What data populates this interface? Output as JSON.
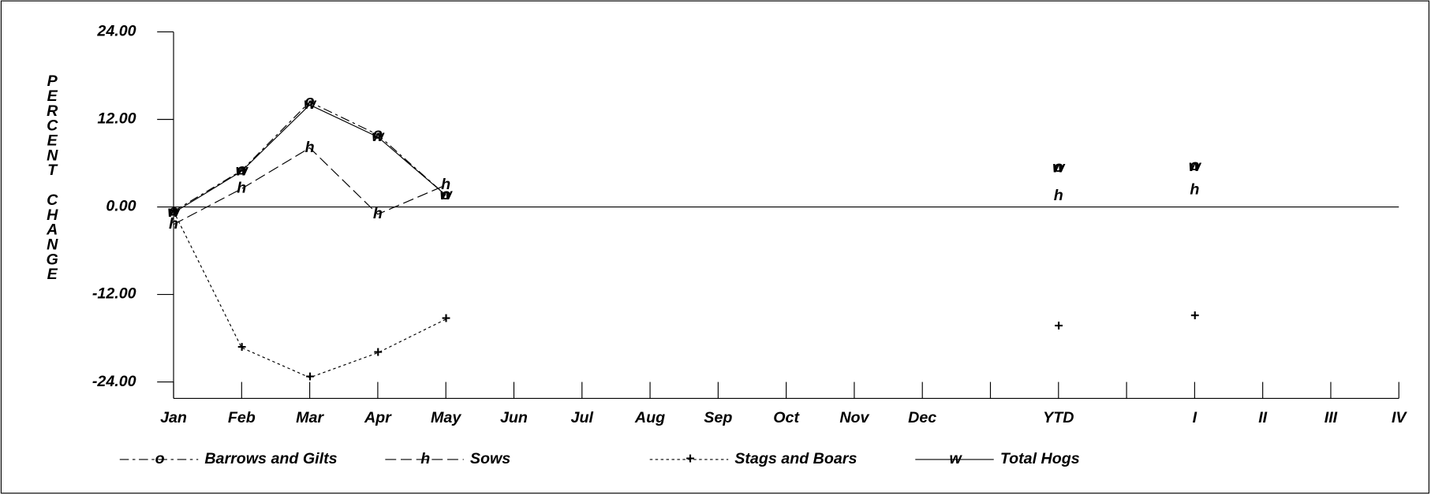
{
  "chart_data": {
    "type": "line",
    "ylabel": "PERCENT CHANGE",
    "categories": [
      "Jan",
      "Feb",
      "Mar",
      "Apr",
      "May",
      "Jun",
      "Jul",
      "Aug",
      "Sep",
      "Oct",
      "Nov",
      "Dec",
      null,
      "YTD",
      null,
      "I",
      "II",
      "III",
      "IV"
    ],
    "ylim": [
      -24,
      24
    ],
    "yticks": [
      {
        "value": -24,
        "label": "-24.00"
      },
      {
        "value": -12,
        "label": "-12.00"
      },
      {
        "value": 0,
        "label": "0.00"
      },
      {
        "value": 12,
        "label": "12.00"
      },
      {
        "value": 24,
        "label": "24.00"
      }
    ],
    "series": [
      {
        "name": "Barrows and Gilts",
        "marker": "o",
        "dash": "dashdot",
        "color": "#000000",
        "values": [
          -0.6,
          5.0,
          14.4,
          9.9,
          1.6,
          null,
          null,
          null,
          null,
          null,
          null,
          null,
          null,
          5.4,
          null,
          5.6,
          null,
          null,
          null
        ]
      },
      {
        "name": "Sows",
        "marker": "h",
        "dash": "dashed",
        "color": "#000000",
        "values": [
          -2.4,
          2.5,
          8.1,
          -1.0,
          3.0,
          null,
          null,
          null,
          null,
          null,
          null,
          null,
          null,
          1.5,
          null,
          2.3,
          null,
          null,
          null
        ]
      },
      {
        "name": "Stags and Boars",
        "marker": "+",
        "dash": "dotted",
        "color": "#000000",
        "values": [
          -0.6,
          -19.3,
          -23.4,
          -20.0,
          -15.4,
          null,
          null,
          null,
          null,
          null,
          null,
          null,
          null,
          -16.4,
          null,
          -15.0,
          null,
          null,
          null
        ]
      },
      {
        "name": "Total Hogs",
        "marker": "w",
        "dash": "solid",
        "color": "#000000",
        "values": [
          -0.8,
          4.9,
          14.0,
          9.6,
          1.6,
          null,
          null,
          null,
          null,
          null,
          null,
          null,
          null,
          5.3,
          null,
          5.5,
          null,
          null,
          null
        ]
      }
    ]
  }
}
